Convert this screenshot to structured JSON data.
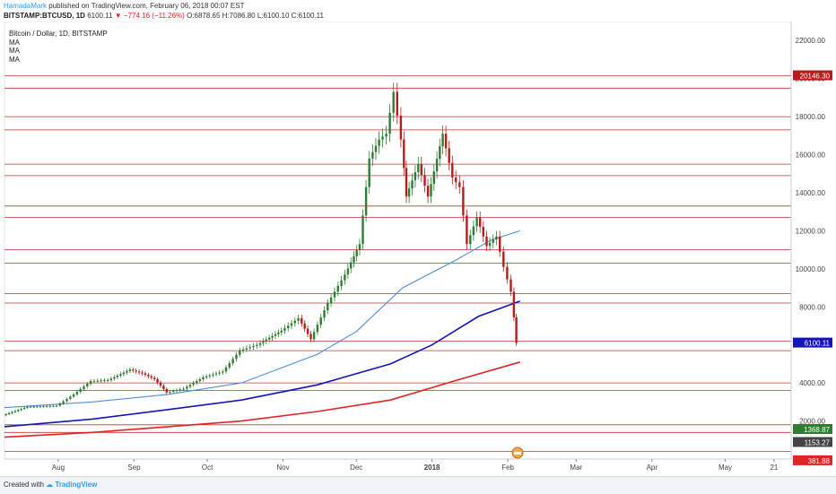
{
  "header": {
    "author": "HamadaMark",
    "published": "published on TradingView.com, February 06, 2018 00:07 EST",
    "symbol": "BITSTAMP:BTCUSD, 1D",
    "last": "6100.11",
    "change": "−774.16 (−11.26%)",
    "open": "O:6878.65",
    "high": "H:7086.80",
    "low": "L:6100.10",
    "close": "C:6100.11"
  },
  "legend": {
    "title": "Bitcoin / Dollar, 1D, BITSTAMP",
    "indicators": [
      "MA",
      "MA",
      "MA"
    ]
  },
  "footer": {
    "created_with": "Created with",
    "brand": "TradingView"
  },
  "colors": {
    "up": "#2e7d32",
    "down": "#b71c1c",
    "ma_fast": "#4b8fdd",
    "ma_mid": "#1414b8",
    "ma_slow": "#e02424",
    "hline": "#c0392b"
  },
  "chart_data": {
    "type": "candlestick",
    "title": "Bitcoin / Dollar, 1D, BITSTAMP",
    "y_range": [
      0,
      23000
    ],
    "y_ticks": [
      22000,
      20000,
      18000,
      16000,
      14000,
      12000,
      10000,
      8000,
      6000,
      4000,
      2000
    ],
    "x_ticks": [
      "Aug",
      "Sep",
      "Oct",
      "Nov",
      "Dec",
      "2018",
      "Feb",
      "Mar",
      "Apr",
      "May",
      "21"
    ],
    "x_tick_dates": [
      "2017-08-01",
      "2017-09-01",
      "2017-10-01",
      "2017-11-01",
      "2017-12-01",
      "2018-01-01",
      "2018-02-01",
      "2018-03-01",
      "2018-04-01",
      "2018-05-01",
      "2018-05-21"
    ],
    "x_range": [
      "2017-07-10",
      "2018-05-28"
    ],
    "price_series": [
      {
        "date": "2017-07-10",
        "price": 2300
      },
      {
        "date": "2017-07-20",
        "price": 2750
      },
      {
        "date": "2017-08-01",
        "price": 2800
      },
      {
        "date": "2017-08-08",
        "price": 3400
      },
      {
        "date": "2017-08-15",
        "price": 4100
      },
      {
        "date": "2017-08-22",
        "price": 4150
      },
      {
        "date": "2017-08-31",
        "price": 4700
      },
      {
        "date": "2017-09-05",
        "price": 4500
      },
      {
        "date": "2017-09-10",
        "price": 4200
      },
      {
        "date": "2017-09-15",
        "price": 3500
      },
      {
        "date": "2017-09-22",
        "price": 3700
      },
      {
        "date": "2017-09-30",
        "price": 4300
      },
      {
        "date": "2017-10-08",
        "price": 4600
      },
      {
        "date": "2017-10-15",
        "price": 5700
      },
      {
        "date": "2017-10-22",
        "price": 6000
      },
      {
        "date": "2017-11-01",
        "price": 6750
      },
      {
        "date": "2017-11-08",
        "price": 7400
      },
      {
        "date": "2017-11-13",
        "price": 6300
      },
      {
        "date": "2017-11-20",
        "price": 8200
      },
      {
        "date": "2017-11-27",
        "price": 9700
      },
      {
        "date": "2017-12-03",
        "price": 11300
      },
      {
        "date": "2017-12-07",
        "price": 15800
      },
      {
        "date": "2017-12-11",
        "price": 16800
      },
      {
        "date": "2017-12-14",
        "price": 17100
      },
      {
        "date": "2017-12-17",
        "price": 19300
      },
      {
        "date": "2017-12-20",
        "price": 16800
      },
      {
        "date": "2017-12-22",
        "price": 13800
      },
      {
        "date": "2017-12-27",
        "price": 15500
      },
      {
        "date": "2017-12-31",
        "price": 13800
      },
      {
        "date": "2018-01-06",
        "price": 17100
      },
      {
        "date": "2018-01-10",
        "price": 14800
      },
      {
        "date": "2018-01-13",
        "price": 14300
      },
      {
        "date": "2018-01-16",
        "price": 11300
      },
      {
        "date": "2018-01-20",
        "price": 12700
      },
      {
        "date": "2018-01-24",
        "price": 11200
      },
      {
        "date": "2018-01-28",
        "price": 11700
      },
      {
        "date": "2018-01-31",
        "price": 10100
      },
      {
        "date": "2018-02-03",
        "price": 8800
      },
      {
        "date": "2018-02-05",
        "price": 6100
      }
    ],
    "moving_averages": [
      {
        "color": "#4b8fdd",
        "points": [
          {
            "date": "2017-07-10",
            "value": 2700
          },
          {
            "date": "2017-08-15",
            "value": 3000
          },
          {
            "date": "2017-09-15",
            "value": 3400
          },
          {
            "date": "2017-10-15",
            "value": 4000
          },
          {
            "date": "2017-11-15",
            "value": 5500
          },
          {
            "date": "2017-12-01",
            "value": 6700
          },
          {
            "date": "2017-12-20",
            "value": 9000
          },
          {
            "date": "2018-01-10",
            "value": 10400
          },
          {
            "date": "2018-01-25",
            "value": 11500
          },
          {
            "date": "2018-02-06",
            "value": 12000
          }
        ]
      },
      {
        "color": "#1414b8",
        "points": [
          {
            "date": "2017-07-10",
            "value": 1700
          },
          {
            "date": "2017-08-15",
            "value": 2100
          },
          {
            "date": "2017-09-15",
            "value": 2600
          },
          {
            "date": "2017-10-15",
            "value": 3100
          },
          {
            "date": "2017-11-15",
            "value": 3900
          },
          {
            "date": "2017-12-15",
            "value": 5000
          },
          {
            "date": "2018-01-01",
            "value": 6000
          },
          {
            "date": "2018-01-20",
            "value": 7500
          },
          {
            "date": "2018-02-06",
            "value": 8300
          }
        ]
      },
      {
        "color": "#e02424",
        "points": [
          {
            "date": "2017-07-10",
            "value": 1150
          },
          {
            "date": "2017-08-15",
            "value": 1400
          },
          {
            "date": "2017-09-15",
            "value": 1700
          },
          {
            "date": "2017-10-15",
            "value": 2000
          },
          {
            "date": "2017-11-15",
            "value": 2500
          },
          {
            "date": "2017-12-15",
            "value": 3100
          },
          {
            "date": "2018-01-10",
            "value": 4100
          },
          {
            "date": "2018-02-06",
            "value": 5100
          }
        ]
      }
    ],
    "horizontal_levels": [
      20146.3,
      19500,
      18000,
      17300,
      15500,
      14900,
      13300,
      12700,
      11000,
      10300,
      8700,
      8200,
      6200,
      5700,
      4000,
      3600,
      1800,
      1400,
      400
    ],
    "price_labels": [
      {
        "text": "20146.30",
        "value": 20146.3,
        "bg": "#b71c1c",
        "fg": "#ffffff"
      },
      {
        "text": "6100.11",
        "value": 6100.11,
        "bg": "#1414b8",
        "fg": "#ffffff"
      },
      {
        "text": "1368.87",
        "value": 1368.87,
        "bg": "#2e7d32",
        "fg": "#ffffff"
      },
      {
        "text": "1153.27",
        "value": 1153.27,
        "bg": "#444444",
        "fg": "#ffffff"
      },
      {
        "text": "381.88",
        "value": 381.88,
        "bg": "#e02424",
        "fg": "#ffffff"
      }
    ]
  }
}
